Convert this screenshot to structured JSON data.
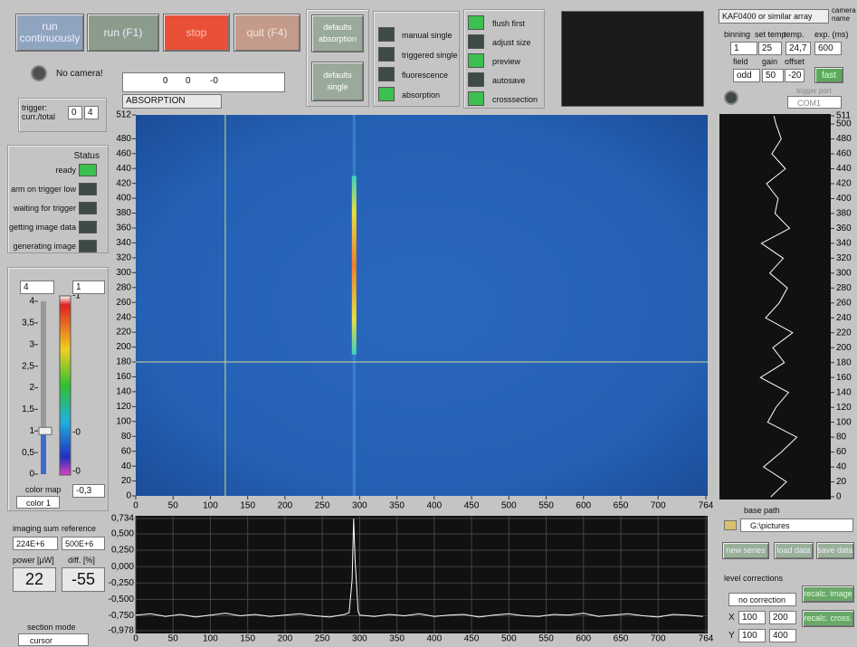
{
  "toolbar": {
    "run_continuously": "run continuously",
    "run": "run (F1)",
    "stop": "stop",
    "quit": "quit (F4)",
    "defaults_absorption": "defaults absorption",
    "defaults_single": "defaults single"
  },
  "modes": [
    {
      "label": "manual single",
      "on": false
    },
    {
      "label": "triggered single",
      "on": false
    },
    {
      "label": "fluorescence",
      "on": false
    },
    {
      "label": "absorption",
      "on": true
    }
  ],
  "options": [
    {
      "label": "flush first",
      "on": true
    },
    {
      "label": "adjust size",
      "on": false
    },
    {
      "label": "preview",
      "on": true
    },
    {
      "label": "autosave",
      "on": false
    },
    {
      "label": "crosssection",
      "on": true
    }
  ],
  "camera": {
    "name": "KAF0400 or similar array",
    "name_label": "camera name",
    "binning_label": "binning",
    "set_temp_label": "set temp",
    "temp_label": "temp.",
    "exp_label": "exp. (ms)",
    "binning": 1,
    "set_temp": 25,
    "temp": "24,7",
    "exp": 600,
    "field_label": "field",
    "gain_label": "gain",
    "offset_label": "offset",
    "field": "odd",
    "gain": 50,
    "offset": -20,
    "fast": "fast",
    "trigger_port_label": "trigger port",
    "trigger_port": "COM1"
  },
  "camera_status": "No camera!",
  "trigger": {
    "label": "trigger: curr./total",
    "current": 0,
    "total": 4
  },
  "cursor_readout": {
    "x": 0,
    "y": 0,
    "value": "-0",
    "mode": "ABSORPTION"
  },
  "status": {
    "title": "Status",
    "items": [
      {
        "label": "ready",
        "on": true
      },
      {
        "label": "arm on trigger low",
        "on": false
      },
      {
        "label": "waiting for trigger",
        "on": false
      },
      {
        "label": "getting image data",
        "on": false
      },
      {
        "label": "generating image",
        "on": false
      }
    ]
  },
  "colorbar": {
    "max": 4,
    "high": 1,
    "slider": {
      "ylim": [
        0,
        4
      ],
      "yticks": [
        4,
        {
          "value": 3.5,
          "label": "3,5"
        },
        3,
        {
          "value": 2.5,
          "label": "2,5"
        },
        2,
        {
          "value": 1.5,
          "label": "1,5"
        },
        1,
        {
          "value": 0.5,
          "label": "0,5"
        },
        0
      ]
    },
    "bar_labels": [
      "-1",
      "-0",
      "-0"
    ],
    "map_label": "color map",
    "map": "color 1",
    "low": "-0,3"
  },
  "readouts": {
    "imaging_sum_label": "imaging sum",
    "reference_label": "reference",
    "imaging_sum": "224E+6",
    "reference": "500E+6",
    "power_label": "power [µW]",
    "diff_label": "diff. [%]",
    "power": 22,
    "diff": -55,
    "section_mode_label": "section mode",
    "section_mode": "cursor"
  },
  "files": {
    "base_path_label": "base path",
    "base_path": "G:\\pictures",
    "new_series": "new series",
    "load_data": "load data",
    "save_data": "save data"
  },
  "level": {
    "label": "level corrections",
    "mode": "no correction",
    "recalc_image": "recalc. image",
    "recalc_cross": "recalc. cross.",
    "x_label": "X",
    "x_from": 100,
    "x_to": 200,
    "y_label": "Y",
    "y_from": 100,
    "y_to": 400
  },
  "chart_data": [
    {
      "type": "heatmap",
      "xlim": [
        0,
        764
      ],
      "xticks": [
        0,
        50,
        100,
        150,
        200,
        250,
        300,
        350,
        400,
        450,
        500,
        550,
        600,
        650,
        700,
        764
      ],
      "ylim": [
        0,
        512
      ],
      "yticks": [
        0,
        20,
        40,
        60,
        80,
        100,
        120,
        140,
        160,
        180,
        200,
        220,
        240,
        260,
        280,
        300,
        320,
        340,
        360,
        380,
        400,
        420,
        440,
        460,
        480,
        512
      ],
      "cursor": {
        "x": 120,
        "y": 180
      }
    },
    {
      "type": "line",
      "xlim": [
        0,
        764
      ],
      "xticks": [
        0,
        50,
        100,
        150,
        200,
        250,
        300,
        350,
        400,
        450,
        500,
        550,
        600,
        650,
        700,
        764
      ],
      "ylim": [
        -0.978,
        0.734
      ],
      "yticks": [
        {
          "value": 0.734,
          "label": "0,734"
        },
        {
          "value": 0.5,
          "label": "0,500"
        },
        {
          "value": 0.25,
          "label": "0,250"
        },
        {
          "value": 0,
          "label": "0,000"
        },
        {
          "value": -0.25,
          "label": "-0,250"
        },
        {
          "value": -0.5,
          "label": "-0,500"
        },
        {
          "value": -0.75,
          "label": "-0,750"
        },
        {
          "value": -0.978,
          "label": "-0,978"
        }
      ],
      "grid": true,
      "color": "#ffffff",
      "x": [
        0,
        20,
        40,
        60,
        80,
        100,
        120,
        140,
        160,
        180,
        200,
        220,
        240,
        260,
        280,
        286,
        290,
        292,
        294,
        298,
        300,
        320,
        340,
        360,
        380,
        400,
        420,
        440,
        460,
        480,
        500,
        520,
        540,
        560,
        580,
        600,
        620,
        640,
        660,
        680,
        700,
        720,
        740,
        760
      ],
      "values": [
        -0.74,
        -0.72,
        -0.76,
        -0.73,
        -0.77,
        -0.74,
        -0.71,
        -0.75,
        -0.73,
        -0.76,
        -0.74,
        -0.72,
        -0.75,
        -0.77,
        -0.73,
        -0.7,
        -0.2,
        0.734,
        0.1,
        -0.68,
        -0.74,
        -0.76,
        -0.73,
        -0.75,
        -0.72,
        -0.76,
        -0.74,
        -0.73,
        -0.77,
        -0.74,
        -0.72,
        -0.75,
        -0.76,
        -0.73,
        -0.74,
        -0.71,
        -0.76,
        -0.74,
        -0.72,
        -0.75,
        -0.77,
        -0.73,
        -0.74,
        -0.76
      ]
    },
    {
      "type": "profile",
      "ylim": [
        0,
        511
      ],
      "yticks": [
        0,
        20,
        40,
        60,
        80,
        100,
        120,
        140,
        160,
        180,
        200,
        220,
        240,
        260,
        280,
        300,
        320,
        340,
        360,
        380,
        400,
        420,
        440,
        460,
        480,
        500,
        511
      ],
      "xlim": [
        0,
        1
      ],
      "color": "#ffffff",
      "y": [
        0,
        20,
        40,
        60,
        80,
        100,
        120,
        140,
        160,
        180,
        200,
        220,
        240,
        260,
        280,
        300,
        320,
        340,
        360,
        380,
        400,
        420,
        440,
        460,
        480,
        500,
        511
      ],
      "values": [
        0.45,
        0.6,
        0.38,
        0.55,
        0.7,
        0.42,
        0.5,
        0.62,
        0.35,
        0.58,
        0.47,
        0.66,
        0.4,
        0.53,
        0.61,
        0.44,
        0.57,
        0.36,
        0.63,
        0.49,
        0.52,
        0.41,
        0.59,
        0.46,
        0.55,
        0.5,
        0.48
      ]
    }
  ]
}
